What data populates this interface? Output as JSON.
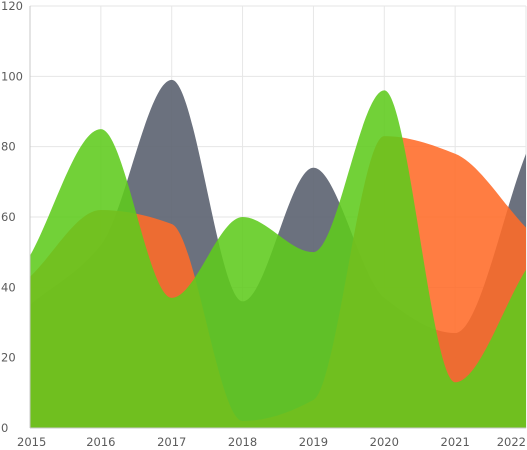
{
  "chart_data": {
    "type": "area",
    "x": [
      "2015",
      "2016",
      "2017",
      "2018",
      "2019",
      "2020",
      "2021",
      "2022"
    ],
    "ylim": [
      0,
      120
    ],
    "yticks": [
      0,
      20,
      40,
      60,
      80,
      100,
      120
    ],
    "grid": true,
    "legend": "none",
    "series": [
      {
        "values": [
          35,
          52,
          99,
          36,
          74,
          37,
          27,
          78
        ],
        "color": "#5e6573",
        "opacity": 0.92
      },
      {
        "values": [
          43,
          62,
          58,
          2,
          8,
          83,
          78,
          57
        ],
        "color": "#ff6b28",
        "opacity": 0.88
      },
      {
        "values": [
          49,
          85,
          37,
          60,
          50,
          96,
          13,
          45
        ],
        "color": "#5ecb1c",
        "opacity": 0.88
      }
    ]
  }
}
